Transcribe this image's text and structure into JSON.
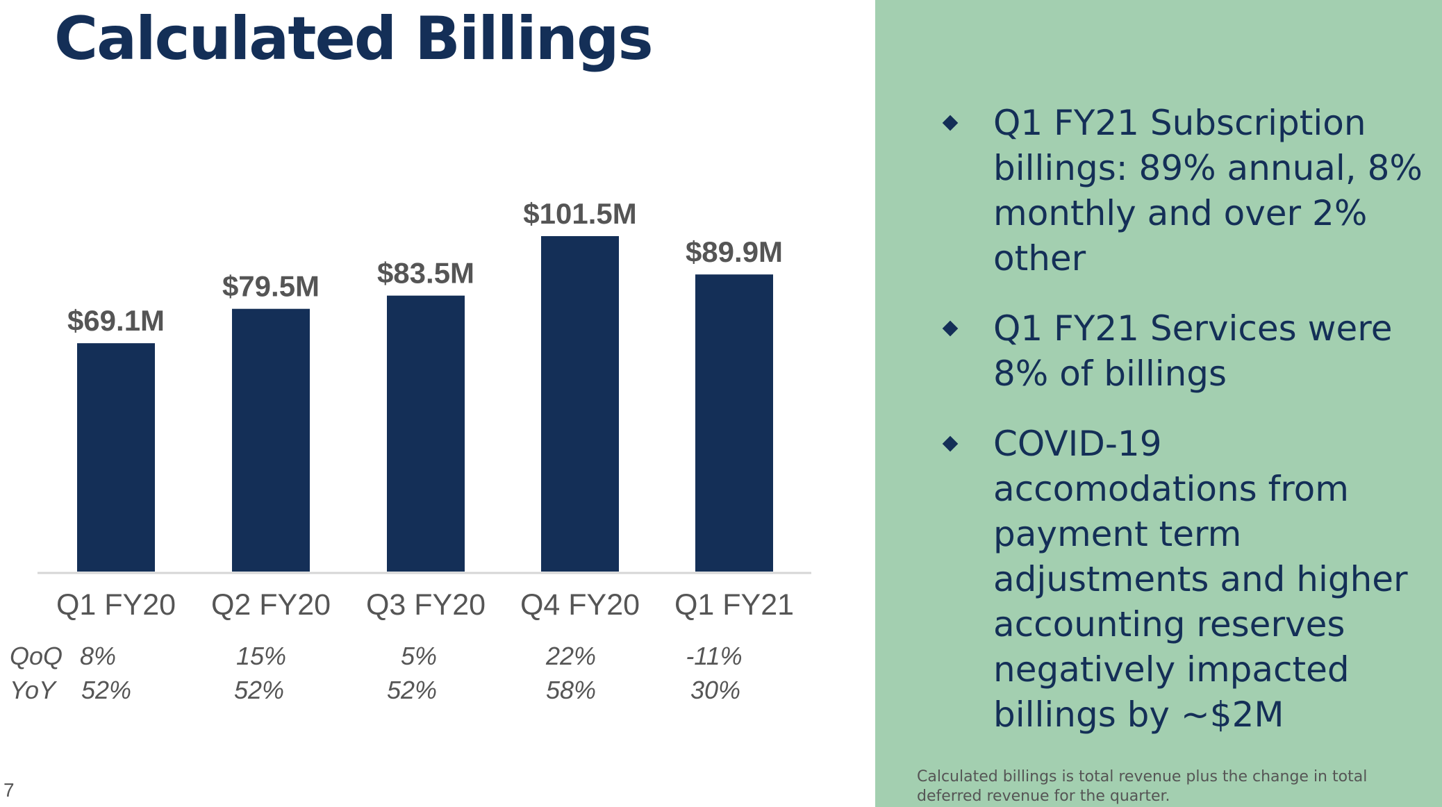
{
  "slide": {
    "title": "Calculated Billings",
    "page_number": "7"
  },
  "metrics": {
    "qoq_label": "QoQ",
    "yoy_label": "YoY",
    "qoq": [
      "8%",
      "15%",
      "5%",
      "22%",
      "-11%"
    ],
    "yoy": [
      "52%",
      "52%",
      "52%",
      "58%",
      "30%"
    ]
  },
  "sidebar": {
    "bullets": [
      "Q1 FY21 Subscription billings: 89% annual, 8% monthly and over 2% other",
      "Q1 FY21 Services were 8% of billings",
      "COVID-19 accomodations from payment term adjustments and higher accounting reserves negatively impacted billings by ~$2M"
    ],
    "footnote": "Calculated billings is total revenue plus the change in total deferred revenue for the quarter."
  },
  "colors": {
    "bar": "#142f57",
    "panel": "#a3cfb0",
    "title": "#142f57",
    "label": "#555555"
  },
  "chart_data": {
    "type": "bar",
    "categories": [
      "Q1 FY20",
      "Q2 FY20",
      "Q3 FY20",
      "Q4 FY20",
      "Q1 FY21"
    ],
    "values": [
      69.1,
      79.5,
      83.5,
      101.5,
      89.9
    ],
    "value_labels": [
      "$69.1M",
      "$79.5M",
      "$83.5M",
      "$101.5M",
      "$89.9M"
    ],
    "unit": "$M",
    "title": "Calculated Billings",
    "xlabel": "",
    "ylabel": "",
    "ylim": [
      0,
      101.5
    ],
    "grid": false,
    "legend": "none"
  }
}
